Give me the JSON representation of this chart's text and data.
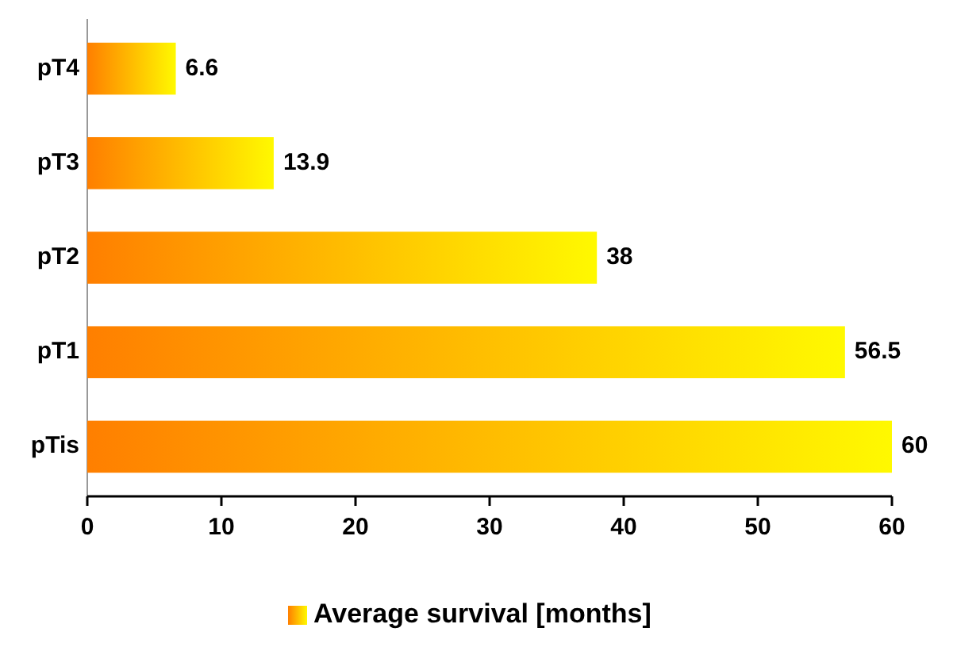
{
  "chart_data": {
    "type": "bar",
    "orientation": "horizontal",
    "categories": [
      "pT4",
      "pT3",
      "pT2",
      "pT1",
      "pTis"
    ],
    "series": [
      {
        "name": "Average survival [months]",
        "color": "#ff7f00",
        "values": [
          6.6,
          13.9,
          38,
          56.5,
          60
        ]
      }
    ],
    "xlim": [
      0,
      60
    ],
    "xticks": [
      0,
      10,
      20,
      30,
      40,
      50,
      60
    ],
    "data_labels": true,
    "legend": "bottom"
  }
}
